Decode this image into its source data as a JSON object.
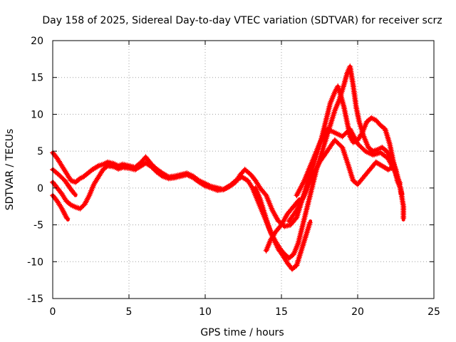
{
  "chart_data": {
    "type": "line",
    "title": "Day 158 of 2025, Sidereal Day-to-day VTEC variation (SDTVAR) for receiver scrz",
    "xlabel": "GPS time / hours",
    "ylabel": "SDTVAR / TECUs",
    "xlim": [
      0,
      25
    ],
    "ylim": [
      -15,
      20
    ],
    "grid": true,
    "legend": "none",
    "x_ticks": [
      "0",
      "5",
      "10",
      "15",
      "20",
      "25"
    ],
    "y_ticks": [
      "-15",
      "-10",
      "-5",
      "0",
      "5",
      "10",
      "15",
      "20"
    ],
    "x_tick_values": [
      0,
      5,
      10,
      15,
      20,
      25
    ],
    "y_tick_values": [
      -15,
      -10,
      -5,
      0,
      5,
      10,
      15,
      20
    ],
    "marker": "+",
    "color": "#ff0000",
    "series": [
      {
        "name": "trace-a",
        "points": [
          [
            0.0,
            4.8
          ],
          [
            0.3,
            4.0
          ],
          [
            0.6,
            3.0
          ],
          [
            0.9,
            2.0
          ],
          [
            1.2,
            1.0
          ],
          [
            1.5,
            0.8
          ],
          [
            1.8,
            1.3
          ],
          [
            2.0,
            1.5
          ],
          [
            2.3,
            2.0
          ],
          [
            2.6,
            2.5
          ],
          [
            3.0,
            3.0
          ],
          [
            3.3,
            3.2
          ],
          [
            3.6,
            3.5
          ],
          [
            4.0,
            3.3
          ],
          [
            4.3,
            3.0
          ],
          [
            4.6,
            3.2
          ],
          [
            5.0,
            3.0
          ],
          [
            5.4,
            2.8
          ],
          [
            5.8,
            3.5
          ],
          [
            6.1,
            4.2
          ],
          [
            6.4,
            3.4
          ],
          [
            6.8,
            2.6
          ],
          [
            7.2,
            2.0
          ],
          [
            7.6,
            1.5
          ],
          [
            8.0,
            1.6
          ],
          [
            8.4,
            1.8
          ],
          [
            8.8,
            2.0
          ],
          [
            9.2,
            1.6
          ],
          [
            9.6,
            1.0
          ],
          [
            10.0,
            0.6
          ],
          [
            10.4,
            0.2
          ],
          [
            10.8,
            0.0
          ],
          [
            11.2,
            -0.2
          ],
          [
            11.6,
            0.2
          ],
          [
            12.0,
            0.8
          ],
          [
            12.3,
            1.8
          ],
          [
            12.6,
            2.5
          ],
          [
            13.0,
            1.8
          ],
          [
            13.3,
            1.0
          ],
          [
            13.6,
            0.0
          ],
          [
            14.0,
            -1.0
          ],
          [
            14.4,
            -3.0
          ],
          [
            14.8,
            -4.5
          ],
          [
            15.2,
            -5.2
          ],
          [
            15.6,
            -5.0
          ],
          [
            16.0,
            -4.0
          ],
          [
            16.3,
            -2.0
          ],
          [
            16.6,
            0.0
          ],
          [
            17.0,
            2.5
          ],
          [
            17.3,
            4.5
          ],
          [
            17.6,
            6.5
          ],
          [
            17.9,
            9.0
          ],
          [
            18.2,
            11.5
          ],
          [
            18.5,
            13.0
          ],
          [
            18.7,
            13.8
          ],
          [
            18.9,
            12.5
          ],
          [
            19.1,
            11.0
          ],
          [
            19.3,
            9.0
          ],
          [
            19.5,
            7.0
          ],
          [
            19.7,
            6.2
          ],
          [
            20.0,
            6.5
          ],
          [
            20.3,
            7.5
          ],
          [
            20.6,
            9.0
          ],
          [
            20.9,
            9.5
          ],
          [
            21.2,
            9.2
          ],
          [
            21.5,
            8.5
          ],
          [
            21.8,
            8.0
          ],
          [
            22.1,
            6.0
          ],
          [
            22.4,
            3.0
          ],
          [
            22.6,
            1.0
          ],
          [
            22.8,
            0.0
          ],
          [
            22.9,
            -1.0
          ]
        ]
      },
      {
        "name": "trace-b",
        "points": [
          [
            0.0,
            0.8
          ],
          [
            0.3,
            0.0
          ],
          [
            0.6,
            -0.8
          ],
          [
            0.9,
            -1.8
          ],
          [
            1.2,
            -2.3
          ],
          [
            1.5,
            -2.6
          ],
          [
            1.8,
            -2.8
          ],
          [
            2.1,
            -2.2
          ],
          [
            2.4,
            -1.0
          ],
          [
            2.7,
            0.5
          ],
          [
            3.0,
            1.5
          ],
          [
            3.3,
            2.5
          ],
          [
            3.6,
            3.0
          ],
          [
            4.0,
            2.9
          ],
          [
            4.3,
            2.6
          ],
          [
            4.6,
            2.8
          ],
          [
            5.0,
            2.7
          ],
          [
            5.4,
            2.5
          ],
          [
            5.8,
            3.0
          ],
          [
            6.1,
            3.4
          ],
          [
            6.4,
            3.0
          ],
          [
            6.8,
            2.2
          ],
          [
            7.2,
            1.6
          ],
          [
            7.6,
            1.3
          ],
          [
            8.0,
            1.4
          ],
          [
            8.4,
            1.6
          ],
          [
            8.8,
            1.8
          ],
          [
            9.2,
            1.4
          ],
          [
            9.6,
            0.8
          ],
          [
            10.0,
            0.3
          ],
          [
            10.4,
            0.0
          ],
          [
            10.8,
            -0.3
          ],
          [
            11.2,
            -0.2
          ],
          [
            11.6,
            0.3
          ],
          [
            12.0,
            1.0
          ],
          [
            12.4,
            1.5
          ],
          [
            12.8,
            1.0
          ],
          [
            13.1,
            0.0
          ],
          [
            13.4,
            -1.5
          ],
          [
            13.7,
            -3.0
          ],
          [
            14.0,
            -4.5
          ],
          [
            14.3,
            -6.0
          ],
          [
            14.6,
            -7.2
          ],
          [
            14.9,
            -8.2
          ],
          [
            15.2,
            -9.0
          ],
          [
            15.5,
            -9.5
          ],
          [
            15.8,
            -9.0
          ],
          [
            16.1,
            -7.5
          ],
          [
            16.4,
            -5.0
          ],
          [
            16.7,
            -2.5
          ],
          [
            17.0,
            0.0
          ],
          [
            17.3,
            2.5
          ],
          [
            17.6,
            4.5
          ],
          [
            17.9,
            6.5
          ],
          [
            18.2,
            8.5
          ],
          [
            18.5,
            10.5
          ],
          [
            18.8,
            12.0
          ],
          [
            19.1,
            14.0
          ],
          [
            19.3,
            15.5
          ],
          [
            19.5,
            16.5
          ],
          [
            19.7,
            14.0
          ],
          [
            19.9,
            11.0
          ],
          [
            20.1,
            9.0
          ],
          [
            20.4,
            7.0
          ],
          [
            20.7,
            5.5
          ],
          [
            21.0,
            5.0
          ],
          [
            21.3,
            5.2
          ],
          [
            21.6,
            5.5
          ],
          [
            21.9,
            5.0
          ],
          [
            22.2,
            4.0
          ],
          [
            22.5,
            2.5
          ],
          [
            22.8,
            0.0
          ],
          [
            23.0,
            -2.5
          ],
          [
            23.0,
            -4.3
          ]
        ]
      },
      {
        "name": "trace-c",
        "points": [
          [
            0.0,
            -1.0
          ],
          [
            0.3,
            -1.8
          ],
          [
            0.6,
            -2.8
          ],
          [
            0.9,
            -4.0
          ],
          [
            1.0,
            -4.3
          ]
        ]
      },
      {
        "name": "trace-d",
        "points": [
          [
            0.0,
            2.5
          ],
          [
            0.4,
            1.8
          ],
          [
            0.8,
            1.0
          ],
          [
            1.2,
            -0.2
          ],
          [
            1.5,
            -1.0
          ]
        ]
      },
      {
        "name": "trace-e",
        "points": [
          [
            13.3,
            0.0
          ],
          [
            13.6,
            -1.5
          ],
          [
            13.9,
            -3.5
          ],
          [
            14.2,
            -5.5
          ],
          [
            14.5,
            -7.0
          ],
          [
            14.8,
            -8.3
          ],
          [
            15.1,
            -9.2
          ],
          [
            15.4,
            -10.2
          ],
          [
            15.7,
            -11.0
          ],
          [
            16.0,
            -10.5
          ],
          [
            16.3,
            -8.5
          ],
          [
            16.6,
            -6.5
          ],
          [
            16.9,
            -4.5
          ]
        ]
      },
      {
        "name": "trace-f",
        "points": [
          [
            14.0,
            -8.5
          ],
          [
            14.3,
            -7.0
          ],
          [
            14.6,
            -6.0
          ],
          [
            15.0,
            -5.0
          ],
          [
            15.4,
            -3.5
          ],
          [
            15.8,
            -2.5
          ],
          [
            16.2,
            -1.5
          ]
        ]
      },
      {
        "name": "trace-g",
        "points": [
          [
            15.5,
            -4.5
          ],
          [
            16.0,
            -3.0
          ],
          [
            16.5,
            -1.0
          ],
          [
            17.0,
            1.5
          ],
          [
            17.5,
            3.5
          ],
          [
            18.0,
            5.0
          ],
          [
            18.5,
            6.5
          ],
          [
            19.0,
            5.5
          ],
          [
            19.4,
            3.0
          ],
          [
            19.7,
            1.0
          ],
          [
            20.0,
            0.5
          ],
          [
            20.4,
            1.5
          ],
          [
            20.8,
            2.5
          ],
          [
            21.2,
            3.5
          ],
          [
            21.6,
            3.0
          ],
          [
            22.0,
            2.5
          ],
          [
            22.3,
            2.8
          ]
        ]
      },
      {
        "name": "trace-h",
        "points": [
          [
            16.0,
            -1.0
          ],
          [
            16.5,
            1.0
          ],
          [
            17.0,
            3.5
          ],
          [
            17.5,
            6.0
          ],
          [
            18.0,
            8.0
          ],
          [
            18.5,
            7.5
          ],
          [
            19.0,
            7.0
          ],
          [
            19.5,
            8.0
          ],
          [
            20.0,
            6.0
          ],
          [
            20.5,
            5.0
          ],
          [
            21.0,
            4.5
          ],
          [
            21.5,
            4.8
          ],
          [
            22.0,
            4.0
          ],
          [
            22.5,
            2.0
          ],
          [
            22.8,
            0.5
          ]
        ]
      }
    ]
  }
}
